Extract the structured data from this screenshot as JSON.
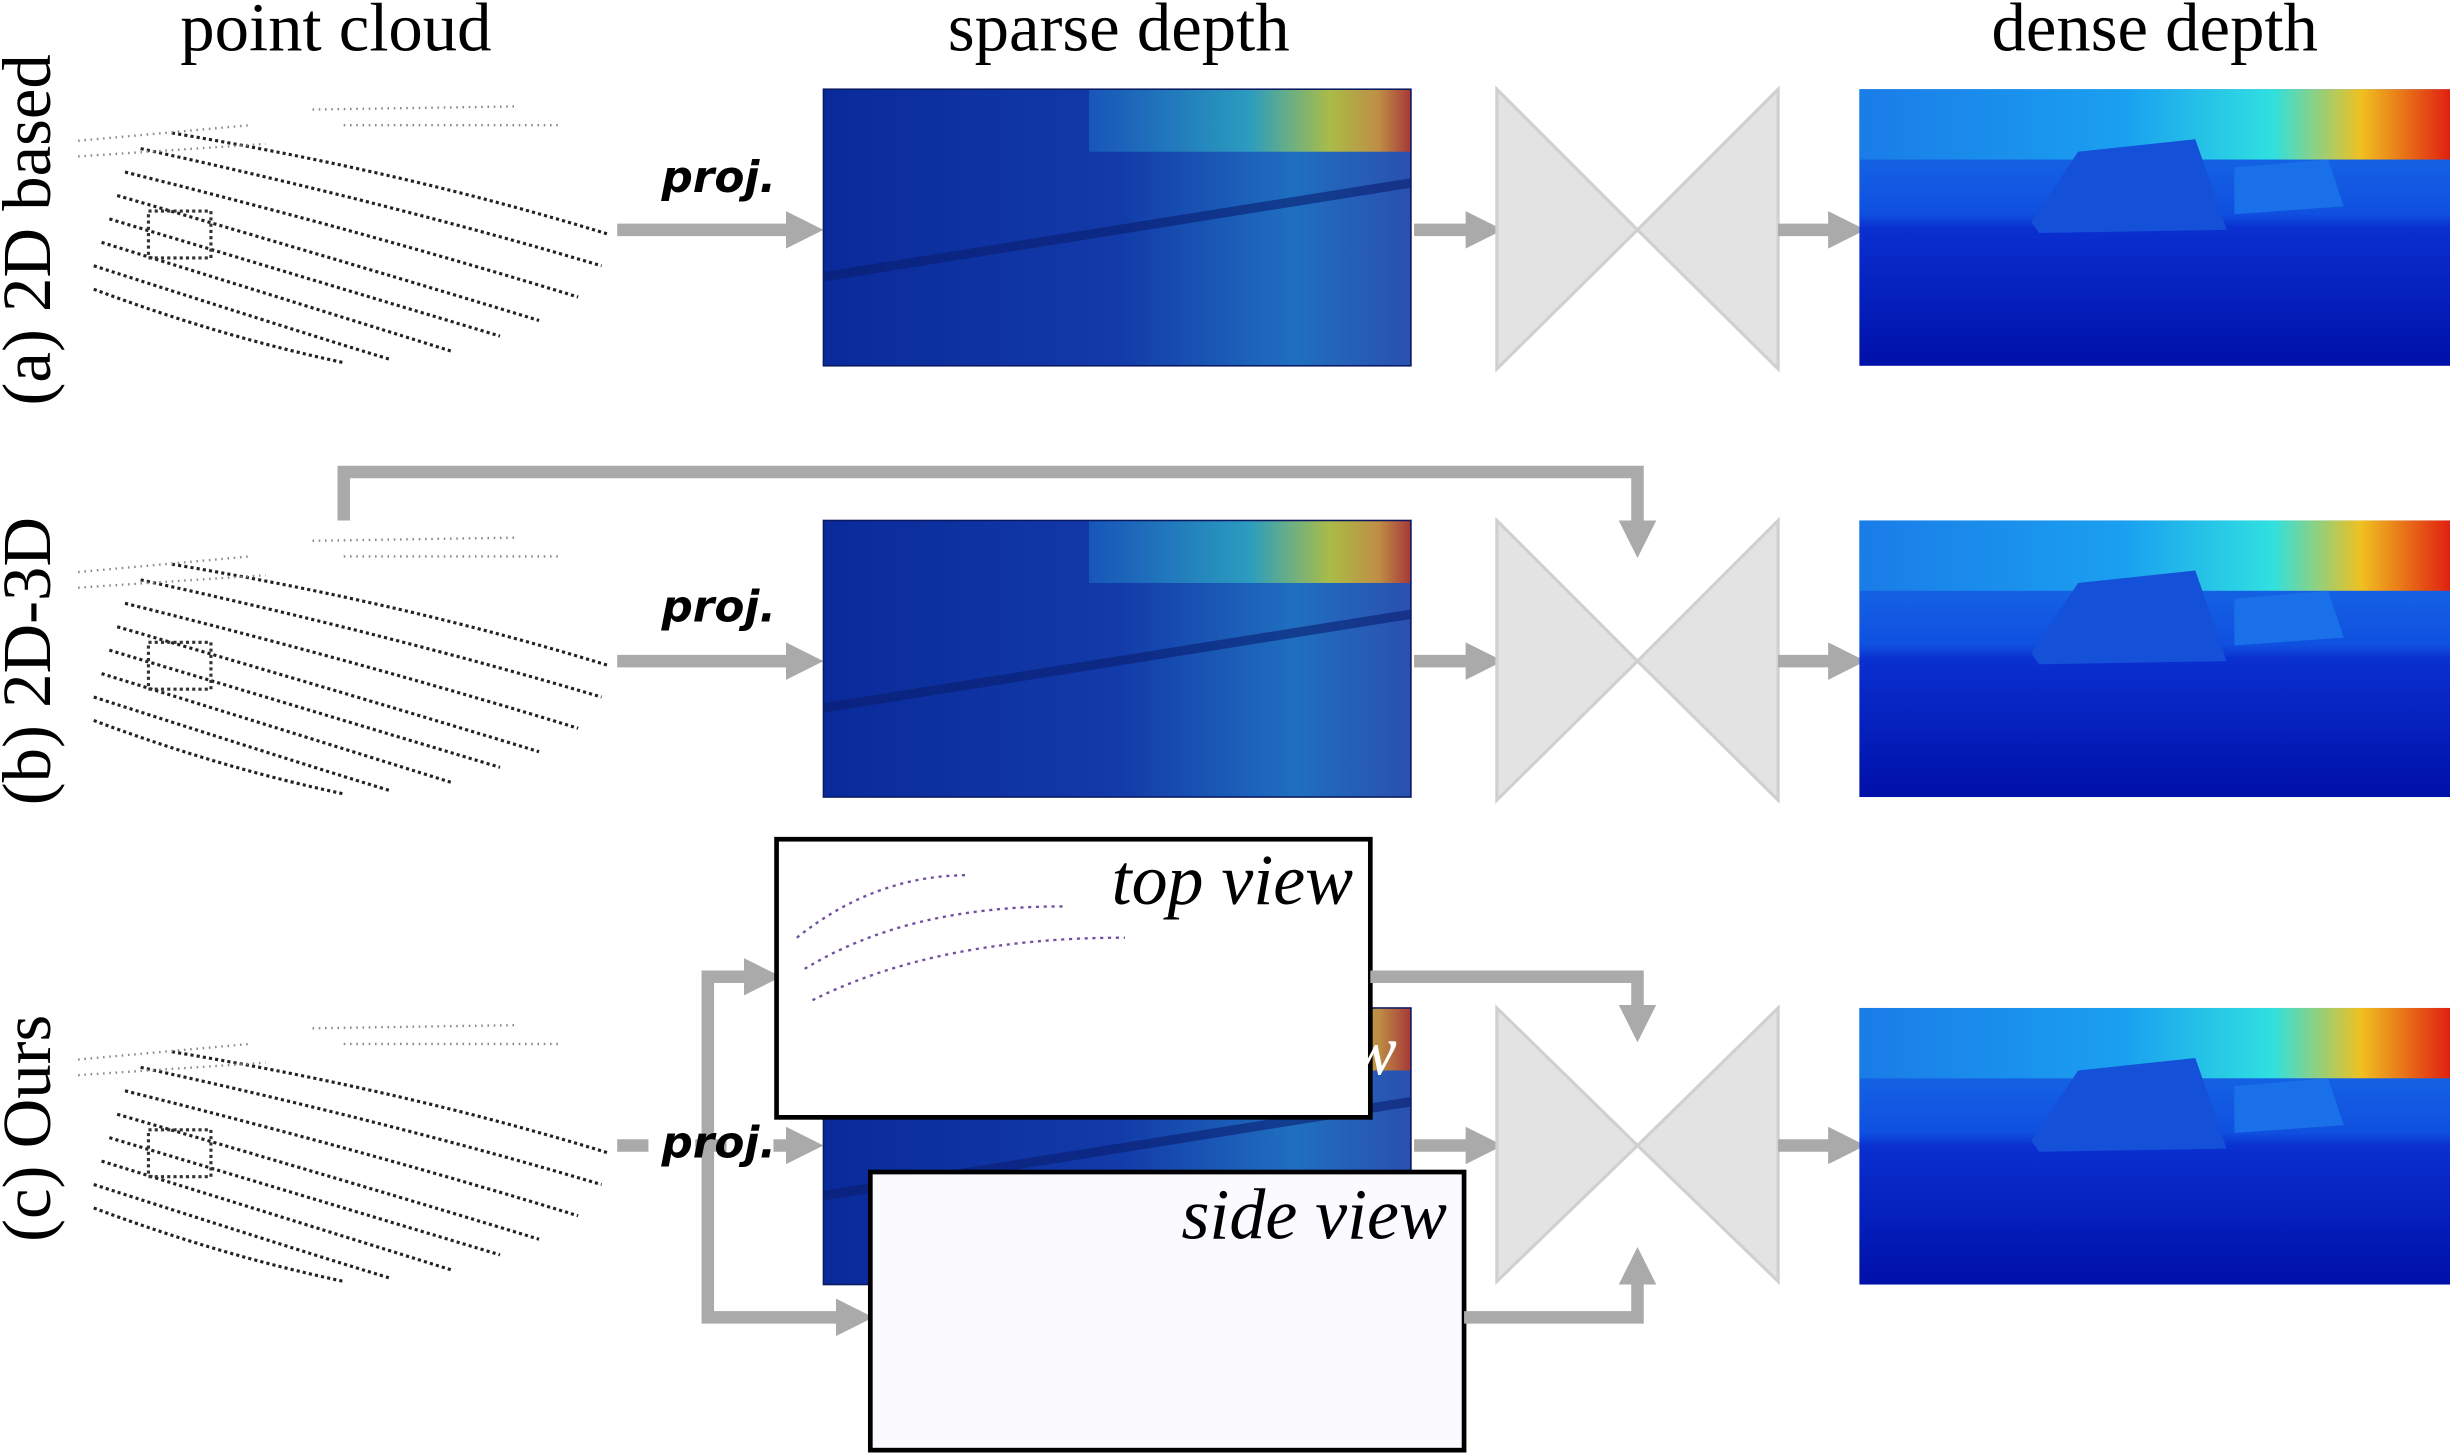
{
  "headers": [
    "point cloud",
    "sparse depth",
    "dense depth"
  ],
  "rows": [
    {
      "label": "(a) 2D based",
      "proj": "proj."
    },
    {
      "label": "(b) 2D-3D",
      "proj": "proj."
    },
    {
      "label": "(c) Ours",
      "proj": "proj."
    }
  ],
  "views": [
    "top view",
    "front view",
    "side view"
  ]
}
